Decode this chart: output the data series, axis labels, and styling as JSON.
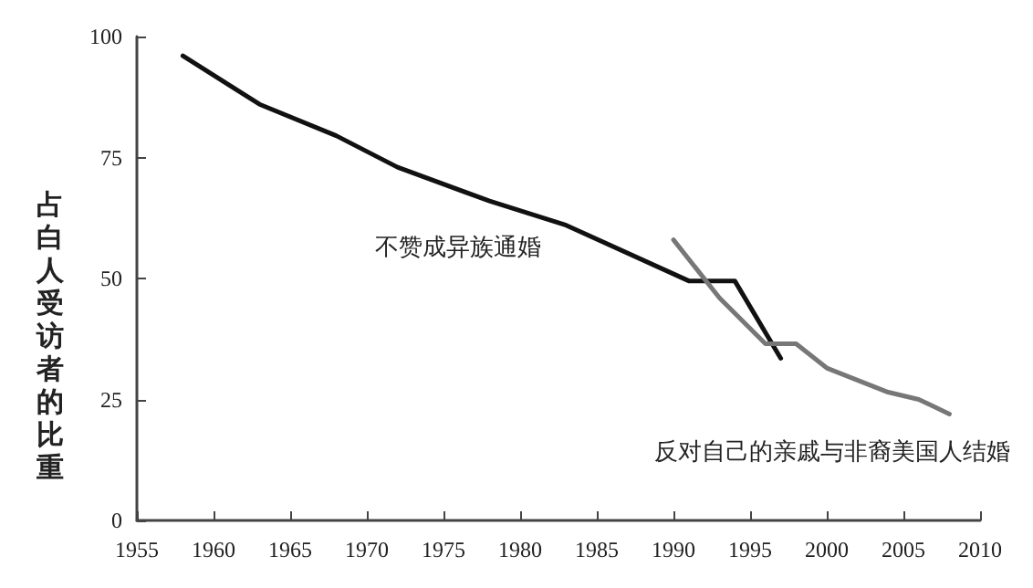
{
  "chart_data": {
    "type": "line",
    "ylabel": "占白人受访者的比重",
    "xlim": [
      1955,
      2010
    ],
    "xticks": [
      1955,
      1960,
      1965,
      1970,
      1975,
      1980,
      1985,
      1990,
      1995,
      2000,
      2005,
      2010
    ],
    "ylim": [
      0,
      100
    ],
    "yticks": [
      0,
      25,
      50,
      75,
      100
    ],
    "series": [
      {
        "color": "#111111",
        "x": [
          1958,
          1963,
          1968,
          1972,
          1978,
          1983,
          1991,
          1994,
          1997
        ],
        "values": [
          96,
          86,
          79.5,
          73,
          66,
          61,
          49.5,
          49.5,
          33.5
        ]
      },
      {
        "color": "#777777",
        "x": [
          1990,
          1993,
          1996,
          1998,
          2000,
          2004,
          2006,
          2008
        ],
        "values": [
          58,
          46,
          36.5,
          36.5,
          31.5,
          26.5,
          25,
          22
        ]
      }
    ],
    "annotations": [
      "不赞成异族通婚",
      "反对自己的亲戚与非裔美国人结婚"
    ],
    "grid": false,
    "marker": "none",
    "line_style": "solid"
  }
}
